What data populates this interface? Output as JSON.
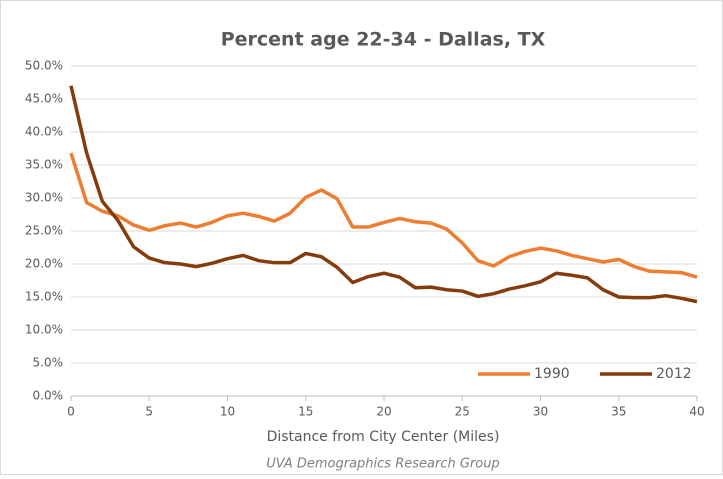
{
  "chart_data": {
    "type": "line",
    "title": "Percent age 22-34 - Dallas, TX",
    "x_label": "Distance from City Center (Miles)",
    "source": "UVA Demographics Research Group",
    "x": [
      0,
      1,
      2,
      3,
      4,
      5,
      6,
      7,
      8,
      9,
      10,
      11,
      12,
      13,
      14,
      15,
      16,
      17,
      18,
      19,
      20,
      21,
      22,
      23,
      24,
      25,
      26,
      27,
      28,
      29,
      30,
      31,
      32,
      33,
      34,
      35,
      36,
      37,
      38,
      39,
      40
    ],
    "series": [
      {
        "name": "1990",
        "color": "#ed7d31",
        "values": [
          36.8,
          29.3,
          28.0,
          27.3,
          25.9,
          25.1,
          25.8,
          26.2,
          25.6,
          26.3,
          27.3,
          27.7,
          27.2,
          26.5,
          27.7,
          30.1,
          31.2,
          29.9,
          25.6,
          25.6,
          26.3,
          26.9,
          26.4,
          26.2,
          25.3,
          23.2,
          20.5,
          19.7,
          21.1,
          21.9,
          22.4,
          22.0,
          21.3,
          20.8,
          20.3,
          20.7,
          19.6,
          18.9,
          18.8,
          18.7,
          18.0
        ]
      },
      {
        "name": "2012",
        "color": "#843c0c",
        "values": [
          47.0,
          36.8,
          29.5,
          26.6,
          22.6,
          20.9,
          20.2,
          20.0,
          19.6,
          20.1,
          20.8,
          21.3,
          20.5,
          20.2,
          20.2,
          21.6,
          21.1,
          19.5,
          17.2,
          18.1,
          18.6,
          18.0,
          16.4,
          16.5,
          16.1,
          15.9,
          15.1,
          15.5,
          16.2,
          16.7,
          17.3,
          18.6,
          18.3,
          17.9,
          16.1,
          15.0,
          14.9,
          14.9,
          15.2,
          14.8,
          14.3
        ]
      }
    ],
    "xlim": [
      0,
      40
    ],
    "xticks": [
      0,
      5,
      10,
      15,
      20,
      25,
      30,
      35,
      40
    ],
    "ylim": [
      0,
      50
    ],
    "yticks": [
      {
        "value": 0,
        "label": "0.0%"
      },
      {
        "value": 5,
        "label": "5.0%"
      },
      {
        "value": 10,
        "label": "10.0%"
      },
      {
        "value": 15,
        "label": "15.0%"
      },
      {
        "value": 20,
        "label": "20.0%"
      },
      {
        "value": 25,
        "label": "25.0%"
      },
      {
        "value": 30,
        "label": "30.0%"
      },
      {
        "value": 35,
        "label": "35.0%"
      },
      {
        "value": 40,
        "label": "40.0%"
      },
      {
        "value": 45,
        "label": "45.0%"
      },
      {
        "value": 50,
        "label": "50.0%"
      }
    ],
    "grid": true,
    "legend": "lower right"
  }
}
